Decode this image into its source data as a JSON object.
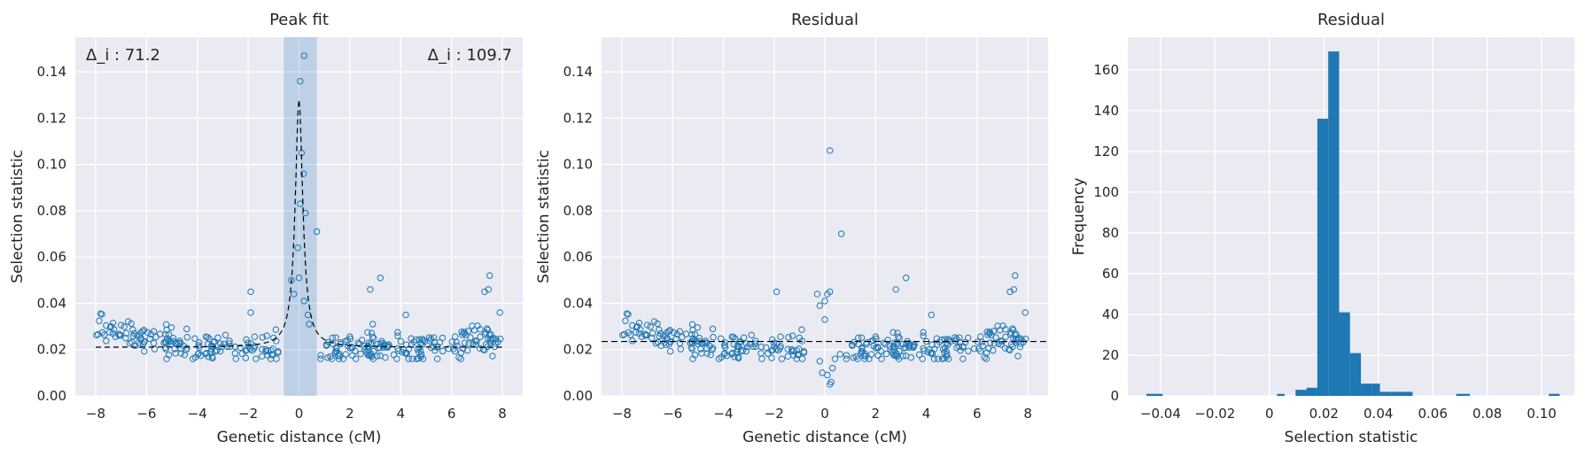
{
  "chart_data": [
    {
      "type": "scatter",
      "title": "Peak fit",
      "xlabel": "Genetic distance (cM)",
      "ylabel": "Selection statistic",
      "xlim": [
        -8.8,
        8.8
      ],
      "ylim": [
        0,
        0.155
      ],
      "xticks": [
        -8,
        -6,
        -4,
        -2,
        0,
        2,
        4,
        6,
        8
      ],
      "yticks": [
        0.0,
        0.02,
        0.04,
        0.06,
        0.08,
        0.1,
        0.12,
        0.14
      ],
      "grid": true,
      "highlight_band": [
        -0.6,
        0.7
      ],
      "annotations": {
        "left": "Δ_i : 71.2",
        "right": "Δ_i : 109.7"
      },
      "notable_points": [
        {
          "x": 0.05,
          "y": 0.136
        },
        {
          "x": 0.2,
          "y": 0.147
        },
        {
          "x": 0.1,
          "y": 0.105
        },
        {
          "x": 0.18,
          "y": 0.096
        },
        {
          "x": 0.05,
          "y": 0.083
        },
        {
          "x": 0.25,
          "y": 0.079
        },
        {
          "x": 0.7,
          "y": 0.071
        },
        {
          "x": -0.05,
          "y": 0.064
        },
        {
          "x": -0.3,
          "y": 0.05
        },
        {
          "x": 0.0,
          "y": 0.051
        },
        {
          "x": 0.2,
          "y": 0.041
        },
        {
          "x": -0.2,
          "y": 0.044
        },
        {
          "x": -1.9,
          "y": 0.045
        },
        {
          "x": 2.8,
          "y": 0.046
        },
        {
          "x": 3.2,
          "y": 0.051
        },
        {
          "x": 4.2,
          "y": 0.035
        },
        {
          "x": 7.3,
          "y": 0.045
        },
        {
          "x": 7.5,
          "y": 0.052
        },
        {
          "x": 7.45,
          "y": 0.046
        },
        {
          "x": 7.9,
          "y": 0.036
        },
        {
          "x": 0.35,
          "y": 0.035
        },
        {
          "x": -1.9,
          "y": 0.036
        },
        {
          "x": 2.9,
          "y": 0.031
        },
        {
          "x": 0.4,
          "y": 0.031
        }
      ],
      "fit_curve": "Lorentzian peak centered at 0.0 cM, peak 0.128, baseline 0.021"
    },
    {
      "type": "scatter",
      "title": "Residual",
      "xlabel": "Genetic distance (cM)",
      "ylabel": "Selection statistic",
      "xlim": [
        -8.8,
        8.8
      ],
      "ylim": [
        0,
        0.155
      ],
      "xticks": [
        -8,
        -6,
        -4,
        -2,
        0,
        2,
        4,
        6,
        8
      ],
      "yticks": [
        0.0,
        0.02,
        0.04,
        0.06,
        0.08,
        0.1,
        0.12,
        0.14
      ],
      "grid": true,
      "reference_line_y": 0.0235,
      "notable_points": [
        {
          "x": 0.2,
          "y": 0.106
        },
        {
          "x": 0.65,
          "y": 0.07
        },
        {
          "x": -0.3,
          "y": 0.044
        },
        {
          "x": 0.0,
          "y": 0.041
        },
        {
          "x": 0.1,
          "y": 0.044
        },
        {
          "x": 0.2,
          "y": 0.045
        },
        {
          "x": -0.2,
          "y": 0.039
        },
        {
          "x": -1.9,
          "y": 0.045
        },
        {
          "x": 2.8,
          "y": 0.046
        },
        {
          "x": 3.2,
          "y": 0.051
        },
        {
          "x": 4.2,
          "y": 0.035
        },
        {
          "x": 7.3,
          "y": 0.045
        },
        {
          "x": 7.5,
          "y": 0.052
        },
        {
          "x": 7.45,
          "y": 0.046
        },
        {
          "x": 7.9,
          "y": 0.036
        },
        {
          "x": 0.0,
          "y": 0.033
        },
        {
          "x": 0.1,
          "y": 0.009
        },
        {
          "x": 0.2,
          "y": 0.005
        },
        {
          "x": 0.25,
          "y": 0.006
        },
        {
          "x": -0.1,
          "y": 0.01
        },
        {
          "x": 0.3,
          "y": 0.012
        },
        {
          "x": 0.4,
          "y": 0.016
        },
        {
          "x": -0.2,
          "y": 0.015
        },
        {
          "x": 0.6,
          "y": 0.018
        }
      ]
    },
    {
      "type": "histogram",
      "title": "Residual",
      "xlabel": "Selection statistic",
      "ylabel": "Frequency",
      "xlim": [
        -0.052,
        0.112
      ],
      "ylim": [
        0,
        176
      ],
      "xticks": [
        -0.04,
        -0.02,
        0.0,
        0.02,
        0.04,
        0.06,
        0.08,
        0.1
      ],
      "yticks": [
        0,
        20,
        40,
        60,
        80,
        100,
        120,
        140,
        160
      ],
      "grid": true,
      "bin_edges": [
        -0.0452,
        -0.0392,
        -0.0332,
        -0.0272,
        -0.0212,
        -0.0152,
        -0.0092,
        -0.0032,
        0.0028,
        0.0056,
        0.0096,
        0.0136,
        0.0176,
        0.0216,
        0.0256,
        0.0296,
        0.0336,
        0.0376,
        0.0406,
        0.0446,
        0.0486,
        0.0526,
        0.0566,
        0.0606,
        0.0646,
        0.0686,
        0.0736,
        0.0786,
        0.0836,
        0.0886,
        0.0936,
        0.0986,
        0.1026,
        0.1066
      ],
      "counts": [
        1,
        0,
        0,
        0,
        0,
        0,
        0,
        0,
        1,
        0,
        3,
        4,
        136,
        169,
        41,
        21,
        6,
        6,
        2,
        2,
        2,
        0,
        0,
        0,
        0,
        1,
        0,
        0,
        0,
        0,
        0,
        0,
        1
      ]
    }
  ]
}
